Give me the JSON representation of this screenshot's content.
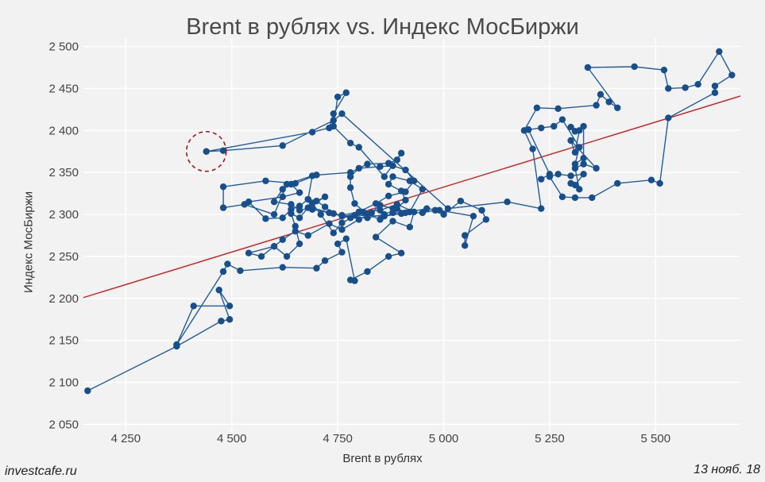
{
  "chart_data": {
    "type": "scatter",
    "title": "Brent в рублях vs. Индекс МосБиржи",
    "xlabel": "Brent в рублях",
    "ylabel": "Индекс МосБиржи",
    "xlim": [
      4150,
      5700
    ],
    "ylim": [
      2040,
      2510
    ],
    "xticks": [
      4250,
      4500,
      4750,
      5000,
      5250,
      5500
    ],
    "xtick_labels": [
      "4 250",
      "4 500",
      "4 750",
      "5 000",
      "5 250",
      "5 500"
    ],
    "yticks": [
      2050,
      2100,
      2150,
      2200,
      2250,
      2300,
      2350,
      2400,
      2450,
      2500
    ],
    "ytick_labels": [
      "2 050",
      "2 100",
      "2 150",
      "2 200",
      "2 250",
      "2 300",
      "2 350",
      "2 400",
      "2 450",
      "2 500"
    ],
    "grid": true,
    "series": [
      {
        "color": "#1f5d9c",
        "connected": true,
        "points": [
          [
            4160,
            2090
          ],
          [
            4370,
            2143
          ],
          [
            4475,
            2173
          ],
          [
            4495,
            2175
          ],
          [
            4470,
            2210
          ],
          [
            4495,
            2191
          ],
          [
            4410,
            2191
          ],
          [
            4370,
            2145
          ],
          [
            4480,
            2232
          ],
          [
            4490,
            2241
          ],
          [
            4520,
            2233
          ],
          [
            4620,
            2237
          ],
          [
            4700,
            2236
          ],
          [
            4720,
            2245
          ],
          [
            4760,
            2255
          ],
          [
            4750,
            2265
          ],
          [
            4770,
            2271
          ],
          [
            4790,
            2221
          ],
          [
            4780,
            2222
          ],
          [
            4820,
            2232
          ],
          [
            4870,
            2250
          ],
          [
            4900,
            2254
          ],
          [
            4840,
            2273
          ],
          [
            4880,
            2292
          ],
          [
            4920,
            2285
          ],
          [
            4930,
            2303
          ],
          [
            4890,
            2312
          ],
          [
            4850,
            2305
          ],
          [
            4810,
            2303
          ],
          [
            4760,
            2290
          ],
          [
            4740,
            2278
          ],
          [
            4710,
            2300
          ],
          [
            4690,
            2313
          ],
          [
            4720,
            2321
          ],
          [
            4680,
            2308
          ],
          [
            4660,
            2296
          ],
          [
            4640,
            2301
          ],
          [
            4650,
            2286
          ],
          [
            4660,
            2265
          ],
          [
            4630,
            2250
          ],
          [
            4600,
            2262
          ],
          [
            4540,
            2254
          ],
          [
            4570,
            2250
          ],
          [
            4620,
            2270
          ],
          [
            4650,
            2280
          ],
          [
            4680,
            2275
          ],
          [
            4730,
            2289
          ],
          [
            4760,
            2282
          ],
          [
            4800,
            2294
          ],
          [
            4830,
            2302
          ],
          [
            4850,
            2311
          ],
          [
            4880,
            2307
          ],
          [
            4920,
            2303
          ],
          [
            4950,
            2330
          ],
          [
            4920,
            2340
          ],
          [
            4880,
            2345
          ],
          [
            4870,
            2336
          ],
          [
            4900,
            2328
          ],
          [
            4910,
            2317
          ],
          [
            4890,
            2307
          ],
          [
            4860,
            2300
          ],
          [
            4820,
            2296
          ],
          [
            4780,
            2296
          ],
          [
            4740,
            2301
          ],
          [
            4720,
            2309
          ],
          [
            4700,
            2316
          ],
          [
            4680,
            2318
          ],
          [
            4660,
            2310
          ],
          [
            4640,
            2306
          ],
          [
            4620,
            2296
          ],
          [
            4580,
            2295
          ],
          [
            4540,
            2315
          ],
          [
            4620,
            2321
          ],
          [
            4660,
            2326
          ],
          [
            4640,
            2336
          ],
          [
            4620,
            2330
          ],
          [
            4600,
            2315
          ],
          [
            4640,
            2312
          ],
          [
            4660,
            2305
          ],
          [
            4690,
            2308
          ],
          [
            4730,
            2302
          ],
          [
            4760,
            2299
          ],
          [
            4800,
            2303
          ],
          [
            4840,
            2313
          ],
          [
            4870,
            2322
          ],
          [
            4910,
            2327
          ],
          [
            4930,
            2340
          ],
          [
            4910,
            2353
          ],
          [
            4880,
            2358
          ],
          [
            4850,
            2357
          ],
          [
            4800,
            2355
          ],
          [
            4780,
            2345
          ],
          [
            4780,
            2332
          ],
          [
            4790,
            2313
          ],
          [
            4820,
            2300
          ],
          [
            4850,
            2294
          ],
          [
            4880,
            2302
          ],
          [
            4910,
            2302
          ],
          [
            4950,
            2302
          ],
          [
            4980,
            2305
          ],
          [
            5000,
            2300
          ],
          [
            5040,
            2316
          ],
          [
            5090,
            2305
          ],
          [
            5100,
            2294
          ],
          [
            5050,
            2275
          ],
          [
            5050,
            2263
          ],
          [
            5070,
            2298
          ],
          [
            4990,
            2305
          ],
          [
            4960,
            2307
          ],
          [
            4900,
            2301
          ],
          [
            4860,
            2298
          ],
          [
            4790,
            2299
          ],
          [
            4760,
            2298
          ],
          [
            4730,
            2302
          ],
          [
            4690,
            2306
          ],
          [
            4680,
            2318
          ],
          [
            4690,
            2346
          ],
          [
            4630,
            2336
          ],
          [
            4600,
            2300
          ],
          [
            4530,
            2312
          ],
          [
            4480,
            2308
          ],
          [
            4480,
            2333
          ],
          [
            4580,
            2340
          ],
          [
            4650,
            2337
          ],
          [
            4700,
            2347
          ],
          [
            4780,
            2350
          ],
          [
            4820,
            2360
          ],
          [
            4870,
            2361
          ],
          [
            4890,
            2365
          ],
          [
            4900,
            2373
          ],
          [
            4860,
            2345
          ],
          [
            4800,
            2380
          ],
          [
            4780,
            2385
          ],
          [
            4740,
            2405
          ],
          [
            4750,
            2440
          ],
          [
            4770,
            2445
          ],
          [
            4740,
            2420
          ],
          [
            4730,
            2403
          ],
          [
            4690,
            2398
          ],
          [
            4440,
            2375
          ],
          [
            4480,
            2376
          ],
          [
            4620,
            2382
          ],
          [
            4740,
            2412
          ],
          [
            4760,
            2420
          ],
          [
            5010,
            2307
          ],
          [
            5150,
            2315
          ],
          [
            5230,
            2307
          ],
          [
            5210,
            2378
          ],
          [
            5190,
            2400
          ],
          [
            5220,
            2427
          ],
          [
            5270,
            2426
          ],
          [
            5360,
            2430
          ],
          [
            5370,
            2443
          ],
          [
            5390,
            2434
          ],
          [
            5410,
            2427
          ],
          [
            5340,
            2475
          ],
          [
            5450,
            2476
          ],
          [
            5520,
            2472
          ],
          [
            5530,
            2450
          ],
          [
            5570,
            2451
          ],
          [
            5600,
            2455
          ],
          [
            5650,
            2494
          ],
          [
            5680,
            2466
          ],
          [
            5640,
            2453
          ],
          [
            5640,
            2445
          ],
          [
            5530,
            2415
          ],
          [
            5510,
            2337
          ],
          [
            5490,
            2341
          ],
          [
            5410,
            2337
          ],
          [
            5350,
            2320
          ],
          [
            5310,
            2320
          ],
          [
            5280,
            2321
          ],
          [
            5250,
            2345
          ],
          [
            5270,
            2348
          ],
          [
            5300,
            2346
          ],
          [
            5330,
            2348
          ],
          [
            5310,
            2335
          ],
          [
            5300,
            2337
          ],
          [
            5320,
            2330
          ],
          [
            5310,
            2355
          ],
          [
            5330,
            2360
          ],
          [
            5360,
            2355
          ],
          [
            5300,
            2388
          ],
          [
            5310,
            2374
          ],
          [
            5320,
            2400
          ],
          [
            5300,
            2404
          ],
          [
            5310,
            2399
          ],
          [
            5330,
            2405
          ],
          [
            5330,
            2367
          ],
          [
            5310,
            2360
          ],
          [
            5320,
            2380
          ],
          [
            5280,
            2413
          ],
          [
            5260,
            2405
          ],
          [
            5230,
            2403
          ],
          [
            5200,
            2401
          ],
          [
            5250,
            2348
          ],
          [
            5230,
            2342
          ]
        ]
      }
    ],
    "trendline": {
      "color": "#cc1b1b",
      "from": [
        4150,
        2201
      ],
      "to": [
        5700,
        2441
      ]
    },
    "highlight": {
      "x": 4440,
      "y": 2375,
      "color": "#a11818",
      "style": "dashed-circle"
    }
  },
  "footer": {
    "source": "investcafe.ru",
    "date": "13 нояб. 18"
  }
}
